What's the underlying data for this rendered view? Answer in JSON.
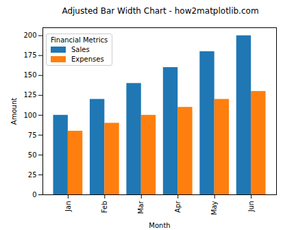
{
  "chart_data": {
    "type": "bar",
    "title": "Adjusted Bar Width Chart - how2matplotlib.com",
    "x_label": "Month",
    "y_label": "Amount",
    "categories": [
      "Jan",
      "Feb",
      "Mar",
      "Apr",
      "May",
      "Jun"
    ],
    "series": [
      {
        "name": "Sales",
        "color": "#1f77b4",
        "values": [
          100,
          120,
          140,
          160,
          180,
          200
        ]
      },
      {
        "name": "Expenses",
        "color": "#ff7f0e",
        "values": [
          80,
          90,
          100,
          110,
          120,
          130
        ]
      }
    ],
    "ylim": [
      0,
      210
    ],
    "yticks": [
      0,
      25,
      50,
      75,
      100,
      125,
      150,
      175,
      200
    ],
    "grid": false,
    "legend": "upper left",
    "legend_title": "Financial Metrics"
  }
}
